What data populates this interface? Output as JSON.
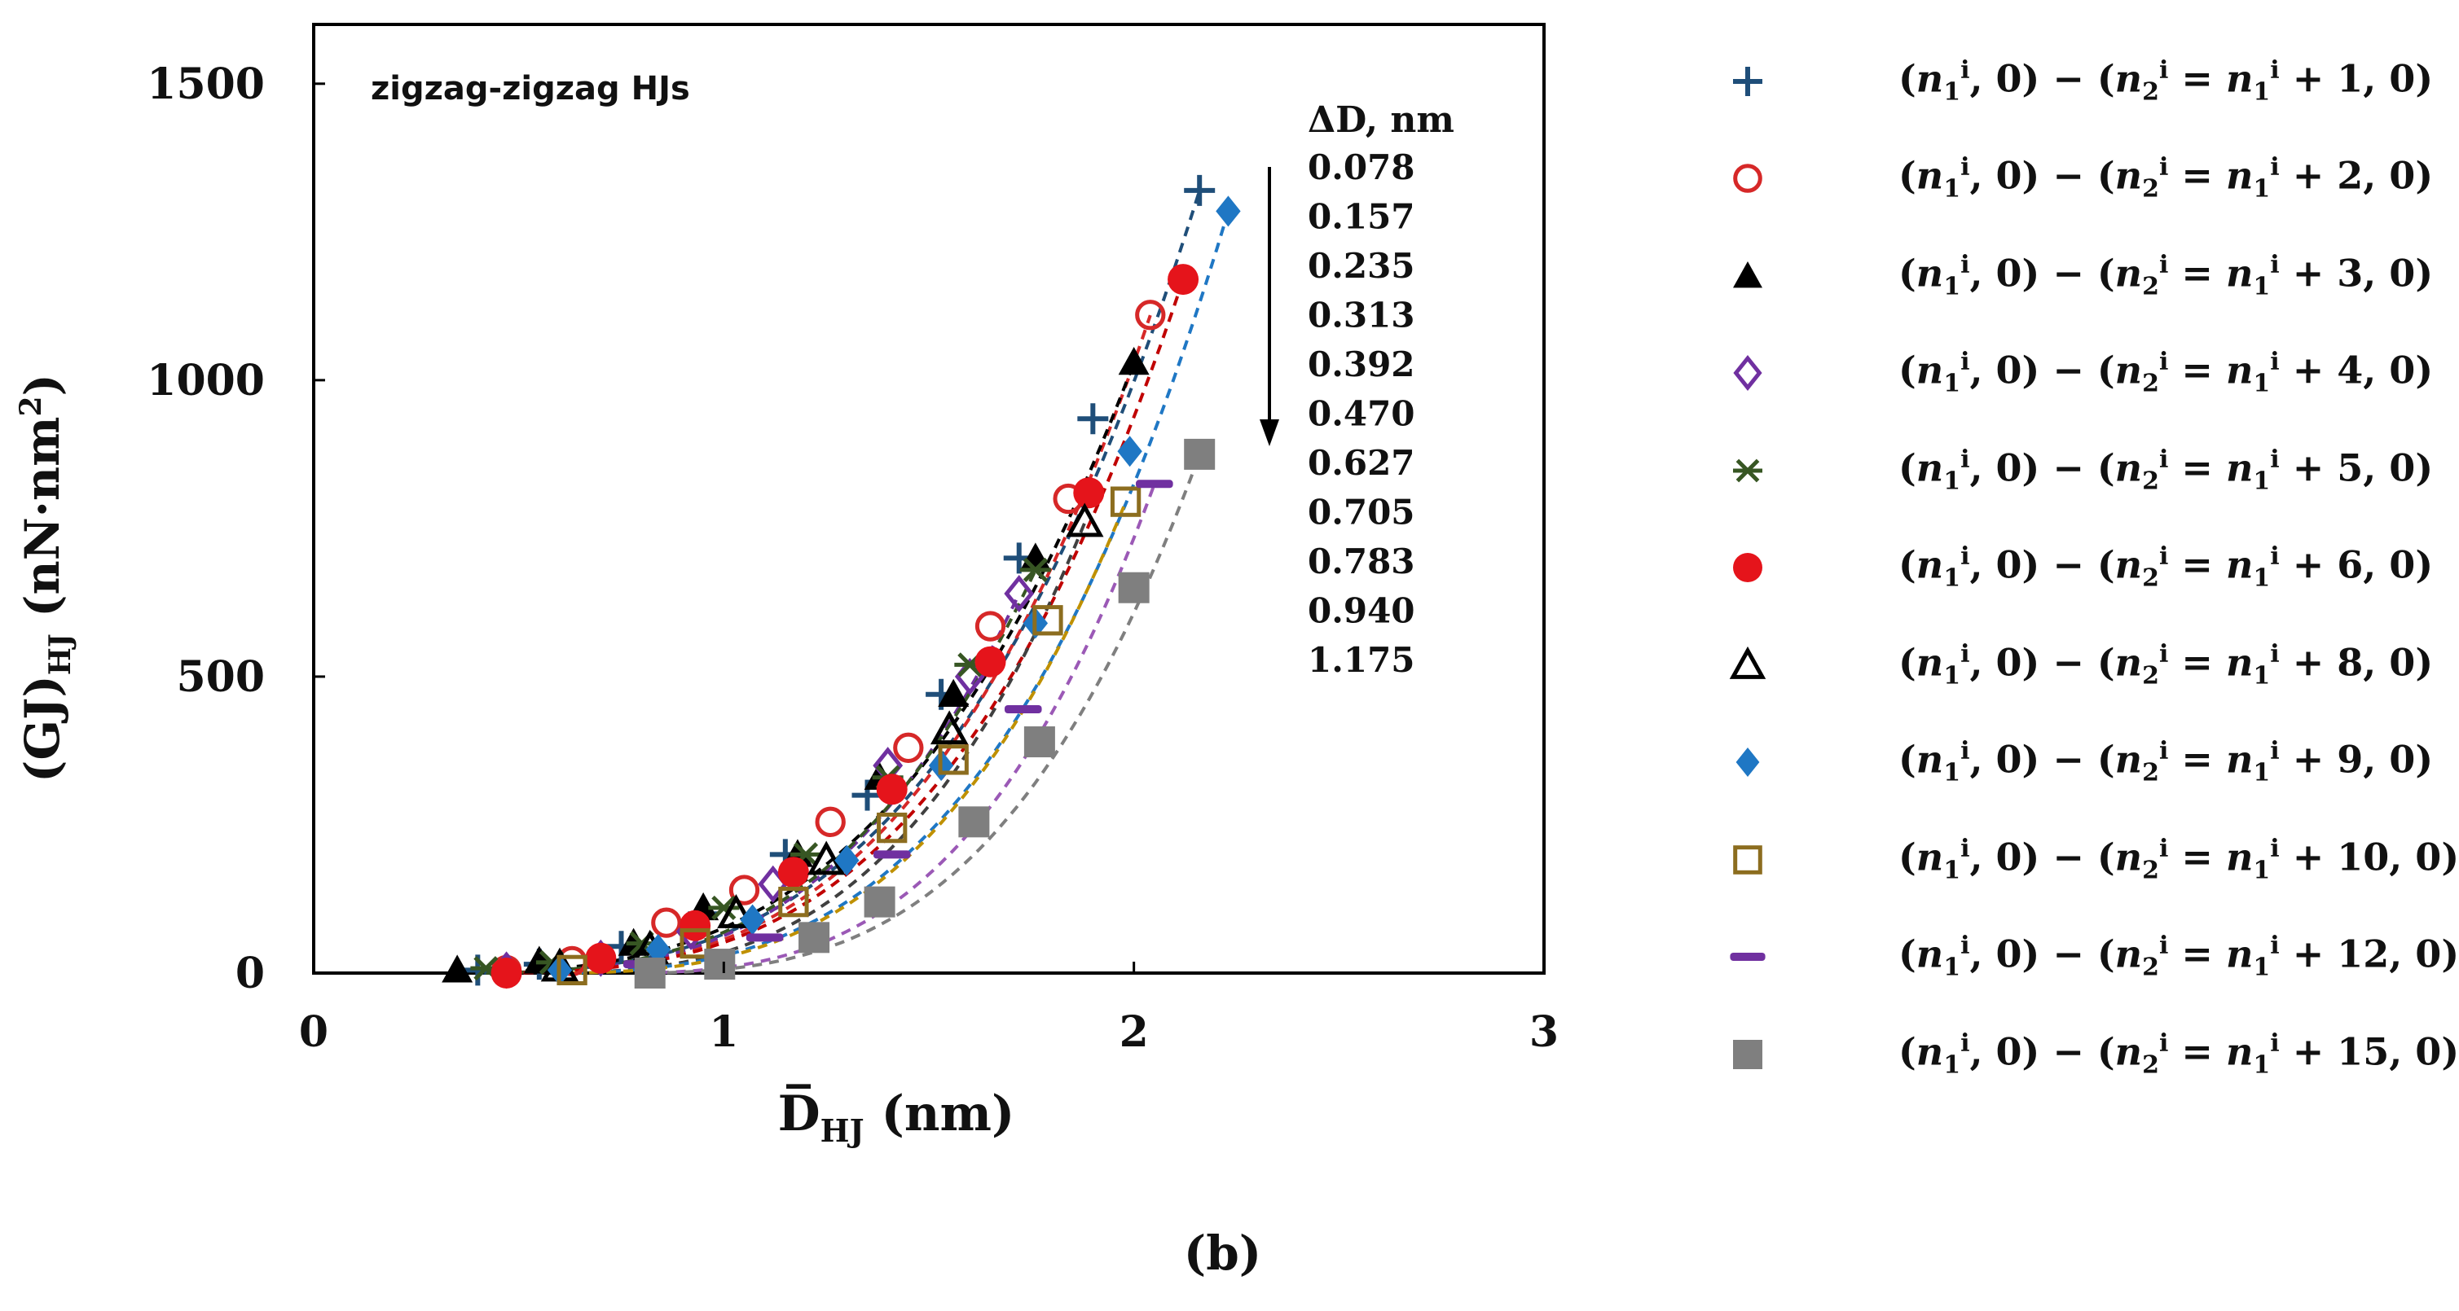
{
  "chart_data": {
    "type": "scatter",
    "title": "zigzag-zigzag HJs",
    "xlabel": "D̅HJ (nm)",
    "ylabel": "(GJ)HJ (nN·nm²)",
    "xlim": [
      0,
      3
    ],
    "ylim": [
      0,
      1600
    ],
    "xticks": [
      0,
      1,
      2,
      3
    ],
    "yticks": [
      0,
      500,
      1000,
      1500
    ],
    "delta_header": "ΔD, nm",
    "delta_values": [
      "0.078",
      "0.157",
      "0.235",
      "0.313",
      "0.392",
      "0.470",
      "0.627",
      "0.705",
      "0.783",
      "0.940",
      "1.175"
    ],
    "series": [
      {
        "name": "(n1i,0)-(n2i=n1i+1,0)",
        "marker": "plus",
        "color": "#1f4e79",
        "curve_color": "#1f4e79",
        "points": [
          [
            0.4,
            5
          ],
          [
            0.55,
            15
          ],
          [
            0.75,
            45
          ],
          [
            0.95,
            100
          ],
          [
            1.15,
            200
          ],
          [
            1.35,
            300
          ],
          [
            1.53,
            470
          ],
          [
            1.72,
            700
          ],
          [
            1.9,
            935
          ],
          [
            2.16,
            1320
          ]
        ]
      },
      {
        "name": "(n1i,0)-(n2i=n1i+2,0)",
        "marker": "open-circle",
        "color": "#d62828",
        "curve_color": "#d62828",
        "points": [
          [
            0.47,
            5
          ],
          [
            0.63,
            20
          ],
          [
            0.86,
            85
          ],
          [
            1.05,
            140
          ],
          [
            1.26,
            255
          ],
          [
            1.45,
            380
          ],
          [
            1.65,
            585
          ],
          [
            1.84,
            800
          ],
          [
            2.04,
            1110
          ]
        ]
      },
      {
        "name": "(n1i,0)-(n2i=n1i+3,0)",
        "marker": "filled-triangle",
        "color": "#000000",
        "curve_color": "#000000",
        "points": [
          [
            0.35,
            5
          ],
          [
            0.55,
            20
          ],
          [
            0.78,
            50
          ],
          [
            0.95,
            110
          ],
          [
            1.18,
            200
          ],
          [
            1.38,
            330
          ],
          [
            1.56,
            470
          ],
          [
            1.76,
            700
          ],
          [
            2.0,
            1030
          ]
        ]
      },
      {
        "name": "(n1i,0)-(n2i=n1i+4,0)",
        "marker": "open-diamond",
        "color": "#7030a0",
        "curve_color": "#7030a0",
        "points": [
          [
            0.47,
            5
          ],
          [
            0.7,
            25
          ],
          [
            0.92,
            70
          ],
          [
            1.12,
            150
          ],
          [
            1.4,
            350
          ],
          [
            1.6,
            500
          ],
          [
            1.72,
            640
          ]
        ]
      },
      {
        "name": "(n1i,0)-(n2i=n1i+5,0)",
        "marker": "asterisk",
        "color": "#375623",
        "curve_color": "#375623",
        "points": [
          [
            0.42,
            8
          ],
          [
            0.58,
            18
          ],
          [
            0.8,
            50
          ],
          [
            1.0,
            110
          ],
          [
            1.2,
            200
          ],
          [
            1.4,
            330
          ],
          [
            1.6,
            520
          ],
          [
            1.76,
            680
          ]
        ]
      },
      {
        "name": "(n1i,0)-(n2i=n1i+6,0)",
        "marker": "filled-circle",
        "color": "#e5141b",
        "curve_color": "#c00000",
        "points": [
          [
            0.47,
            0
          ],
          [
            0.7,
            25
          ],
          [
            0.93,
            80
          ],
          [
            1.17,
            170
          ],
          [
            1.41,
            310
          ],
          [
            1.65,
            525
          ],
          [
            1.89,
            810
          ],
          [
            2.12,
            1170
          ]
        ]
      },
      {
        "name": "(n1i,0)-(n2i=n1i+8,0)",
        "marker": "open-triangle",
        "color": "#000000",
        "curve_color": "#404040",
        "points": [
          [
            0.6,
            10
          ],
          [
            0.82,
            40
          ],
          [
            1.03,
            100
          ],
          [
            1.25,
            190
          ],
          [
            1.55,
            410
          ],
          [
            1.88,
            760
          ]
        ]
      },
      {
        "name": "(n1i,0)-(n2i=n1i+9,0)",
        "marker": "filled-diamond",
        "color": "#1f77c4",
        "curve_color": "#1f77c4",
        "points": [
          [
            0.6,
            5
          ],
          [
            0.84,
            40
          ],
          [
            1.07,
            90
          ],
          [
            1.3,
            190
          ],
          [
            1.53,
            350
          ],
          [
            1.76,
            590
          ],
          [
            1.99,
            880
          ],
          [
            2.23,
            1285
          ]
        ]
      },
      {
        "name": "(n1i,0)-(n2i=n1i+10,0)",
        "marker": "open-square",
        "color": "#8c6d1f",
        "curve_color": "#bf9000",
        "points": [
          [
            0.63,
            5
          ],
          [
            0.93,
            50
          ],
          [
            1.17,
            120
          ],
          [
            1.41,
            245
          ],
          [
            1.56,
            360
          ],
          [
            1.79,
            595
          ],
          [
            1.98,
            795
          ]
        ]
      },
      {
        "name": "(n1i,0)-(n2i=n1i+12,0)",
        "marker": "dash",
        "color": "#7030a0",
        "curve_color": "#9b59b6",
        "points": [
          [
            0.8,
            15
          ],
          [
            1.1,
            60
          ],
          [
            1.41,
            200
          ],
          [
            1.73,
            445
          ],
          [
            2.05,
            825
          ]
        ]
      },
      {
        "name": "(n1i,0)-(n2i=n1i+15,0)",
        "marker": "filled-square",
        "color": "#7f7f7f",
        "curve_color": "#7f7f7f",
        "points": [
          [
            0.82,
            0
          ],
          [
            0.99,
            15
          ],
          [
            1.22,
            60
          ],
          [
            1.38,
            120
          ],
          [
            1.61,
            255
          ],
          [
            1.77,
            390
          ],
          [
            2.0,
            650
          ],
          [
            2.16,
            875
          ]
        ]
      }
    ]
  },
  "legend": [
    {
      "marker": "plus",
      "color": "#1f4e79",
      "k": "1"
    },
    {
      "marker": "open-circle",
      "color": "#d62828",
      "k": "2"
    },
    {
      "marker": "filled-triangle",
      "color": "#000000",
      "k": "3"
    },
    {
      "marker": "open-diamond",
      "color": "#7030a0",
      "k": "4"
    },
    {
      "marker": "asterisk",
      "color": "#375623",
      "k": "5"
    },
    {
      "marker": "filled-circle",
      "color": "#e5141b",
      "k": "6"
    },
    {
      "marker": "open-triangle",
      "color": "#000000",
      "k": "8"
    },
    {
      "marker": "filled-diamond",
      "color": "#1f77c4",
      "k": "9"
    },
    {
      "marker": "open-square",
      "color": "#8c6d1f",
      "k": "10"
    },
    {
      "marker": "dash",
      "color": "#7030a0",
      "k": "12"
    },
    {
      "marker": "filled-square",
      "color": "#7f7f7f",
      "k": "15"
    }
  ],
  "caption": "(b)"
}
